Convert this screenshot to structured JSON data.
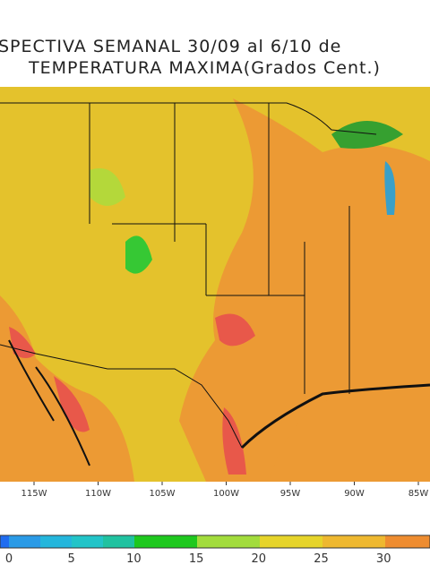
{
  "title": {
    "line1": "SPECTIVA SEMANAL  30/09 al 6/10 de",
    "line2": "TEMPERATURA MAXIMA(Grados Cent.)"
  },
  "longitudes": [
    "115W",
    "110W",
    "105W",
    "100W",
    "95W",
    "90W",
    "85W"
  ],
  "colorbar": {
    "ticks": [
      0,
      5,
      10,
      15,
      20,
      25,
      30
    ]
  }
}
